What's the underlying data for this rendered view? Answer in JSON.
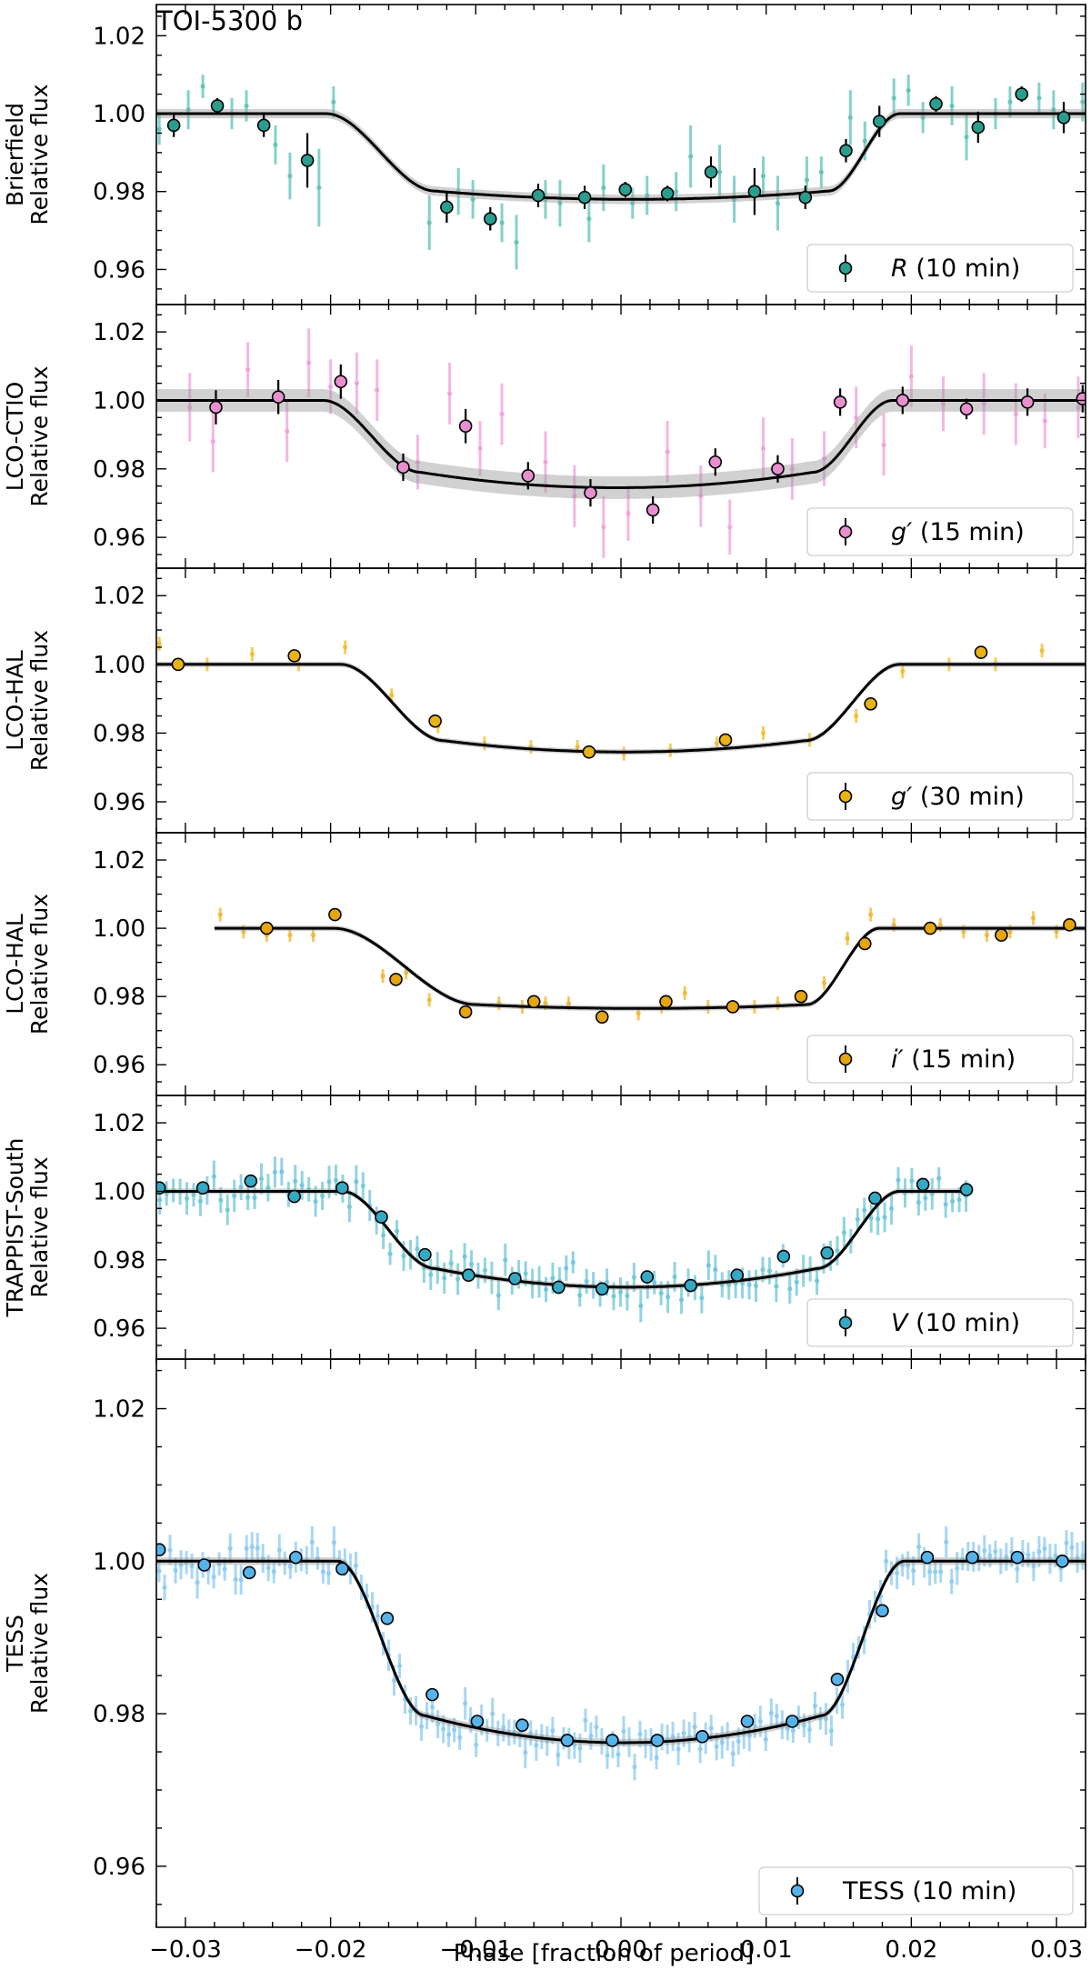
{
  "figure_title": "TOI-5300 b",
  "x_axis": {
    "label": "Phase [fraction of period]",
    "range": [
      -0.032,
      0.032
    ],
    "ticks": [
      -0.03,
      -0.02,
      -0.01,
      0.0,
      0.01,
      0.02,
      0.03
    ],
    "tick_labels": [
      "−0.03",
      "−0.02",
      "−0.01",
      "0.00",
      "0.01",
      "0.02",
      "0.03"
    ]
  },
  "chart_data": [
    {
      "type": "scatter",
      "panel_id": "brierfield",
      "ylabel_line1": "Brierfield",
      "ylabel_line2": "Relative flux",
      "legend_label": "R (10 min)",
      "legend_italic": "R",
      "legend_rest": " (10 min)",
      "color": "#2a9d8f",
      "raw_color": "#5cc2b5",
      "ylim": [
        0.951,
        1.028
      ],
      "yticks": [
        0.96,
        0.98,
        1.0,
        1.02
      ],
      "ytick_labels": [
        "0.96",
        "0.98",
        "1.00",
        "1.02"
      ],
      "model": {
        "x_start": -0.032,
        "x_end": 0.032,
        "depth": 0.022,
        "ingress_start": -0.0203,
        "ingress_end": -0.0128,
        "egress_start": 0.0143,
        "egress_end": 0.0192,
        "limb_darkening": 0.18
      },
      "model_band": 0.0012,
      "binned": {
        "x": [
          -0.0308,
          -0.0278,
          -0.0246,
          -0.0216,
          -0.012,
          -0.009,
          -0.0057,
          -0.0025,
          0.0003,
          0.0032,
          0.0062,
          0.0092,
          0.0127,
          0.0155,
          0.0178,
          0.0217,
          0.0246,
          0.0276,
          0.0305
        ],
        "y": [
          0.997,
          1.002,
          0.997,
          0.988,
          0.976,
          0.973,
          0.979,
          0.9785,
          0.9805,
          0.9795,
          0.985,
          0.98,
          0.9785,
          0.9905,
          0.998,
          1.0025,
          0.9965,
          1.005,
          0.999
        ],
        "err": [
          0.003,
          0.002,
          0.003,
          0.007,
          0.004,
          0.003,
          0.003,
          0.003,
          0.002,
          0.002,
          0.004,
          0.006,
          0.003,
          0.003,
          0.004,
          0.002,
          0.004,
          0.002,
          0.004
        ]
      },
      "raw": {
        "x": [
          -0.0318,
          -0.0298,
          -0.0288,
          -0.0268,
          -0.0258,
          -0.0238,
          -0.0228,
          -0.0208,
          -0.0198,
          -0.0132,
          -0.0112,
          -0.0102,
          -0.0082,
          -0.0072,
          -0.0052,
          -0.0042,
          -0.0022,
          -0.0012,
          0.0008,
          0.0018,
          0.0038,
          0.0048,
          0.0068,
          0.0078,
          0.0098,
          0.0108,
          0.0128,
          0.0138,
          0.0158,
          0.0168,
          0.0188,
          0.0198,
          0.0208,
          0.0228,
          0.0238,
          0.0258,
          0.0268,
          0.0288,
          0.0298,
          0.0318
        ],
        "y": [
          0.996,
          1.001,
          1.007,
          1.0,
          1.002,
          0.992,
          0.984,
          0.981,
          1.003,
          0.972,
          0.98,
          0.978,
          0.972,
          0.967,
          0.978,
          0.977,
          0.973,
          0.981,
          0.977,
          0.979,
          0.98,
          0.989,
          0.985,
          0.978,
          0.984,
          0.977,
          0.983,
          0.985,
          0.999,
          0.993,
          1.004,
          1.006,
          0.999,
          1.002,
          0.994,
          1.0,
          1.003,
          1.004,
          1.001,
          1.003
        ],
        "err": [
          0.004,
          0.005,
          0.003,
          0.004,
          0.004,
          0.005,
          0.006,
          0.01,
          0.004,
          0.007,
          0.006,
          0.005,
          0.005,
          0.007,
          0.005,
          0.006,
          0.006,
          0.006,
          0.004,
          0.005,
          0.005,
          0.008,
          0.007,
          0.006,
          0.005,
          0.007,
          0.006,
          0.004,
          0.007,
          0.005,
          0.005,
          0.004,
          0.004,
          0.005,
          0.006,
          0.004,
          0.004,
          0.004,
          0.005,
          0.005
        ]
      }
    },
    {
      "type": "scatter",
      "panel_id": "lco-ctio",
      "ylabel_line1": "LCO-CTIO",
      "ylabel_line2": "Relative flux",
      "legend_label": "g′ (15 min)",
      "legend_italic": "g′",
      "legend_rest": " (15 min)",
      "color": "#e88fd0",
      "raw_color": "#ef9fda",
      "ylim": [
        0.951,
        1.028
      ],
      "yticks": [
        0.96,
        0.98,
        1.0,
        1.02
      ],
      "ytick_labels": [
        "0.96",
        "0.98",
        "1.00",
        "1.02"
      ],
      "model": {
        "x_start": -0.032,
        "x_end": 0.032,
        "depth": 0.0255,
        "ingress_start": -0.0205,
        "ingress_end": -0.0138,
        "egress_start": 0.0132,
        "egress_end": 0.0187,
        "limb_darkening": 0.35
      },
      "model_band": 0.0033,
      "binned": {
        "x": [
          -0.0279,
          -0.0236,
          -0.0193,
          -0.015,
          -0.0107,
          -0.0064,
          -0.0021,
          0.0022,
          0.0065,
          0.0108,
          0.0151,
          0.0194,
          0.0238,
          0.028,
          0.0318
        ],
        "y": [
          0.998,
          1.001,
          1.0055,
          0.9805,
          0.9925,
          0.978,
          0.973,
          0.968,
          0.982,
          0.98,
          0.9995,
          1.0,
          0.9975,
          0.9995,
          1.0005
        ],
        "err": [
          0.005,
          0.005,
          0.005,
          0.004,
          0.005,
          0.004,
          0.004,
          0.004,
          0.004,
          0.004,
          0.004,
          0.004,
          0.003,
          0.004,
          0.004
        ]
      },
      "raw": {
        "x": [
          -0.0297,
          -0.0281,
          -0.0257,
          -0.023,
          -0.0215,
          -0.02,
          -0.0182,
          -0.0168,
          -0.014,
          -0.0118,
          -0.0097,
          -0.0082,
          -0.0052,
          -0.0032,
          -0.0012,
          0.0005,
          0.0032,
          0.0055,
          0.0075,
          0.0098,
          0.0118,
          0.014,
          0.0162,
          0.0181,
          0.02,
          0.0222,
          0.025,
          0.0272,
          0.0292,
          0.0315
        ],
        "y": [
          0.998,
          0.988,
          1.009,
          0.991,
          1.011,
          1.004,
          1.005,
          1.003,
          0.982,
          1.002,
          0.986,
          0.996,
          0.982,
          0.972,
          0.963,
          0.967,
          0.985,
          0.972,
          0.963,
          0.986,
          0.98,
          0.983,
          0.995,
          0.987,
          1.007,
          0.999,
          0.999,
          0.996,
          0.994,
          0.998
        ],
        "err": [
          0.01,
          0.009,
          0.008,
          0.009,
          0.01,
          0.008,
          0.009,
          0.009,
          0.008,
          0.009,
          0.008,
          0.009,
          0.009,
          0.009,
          0.009,
          0.008,
          0.009,
          0.009,
          0.008,
          0.009,
          0.009,
          0.008,
          0.009,
          0.009,
          0.009,
          0.008,
          0.009,
          0.009,
          0.008,
          0.009
        ]
      }
    },
    {
      "type": "scatter",
      "panel_id": "lco-hal-g",
      "ylabel_line1": "LCO-HAL",
      "ylabel_line2": "Relative flux",
      "legend_label": "g′ (30 min)",
      "legend_italic": "g′",
      "legend_rest": " (30 min)",
      "color": "#e8b315",
      "raw_color": "#f0bb2a",
      "ylim": [
        0.951,
        1.028
      ],
      "yticks": [
        0.96,
        0.98,
        1.0,
        1.02
      ],
      "ytick_labels": [
        "0.96",
        "0.98",
        "1.00",
        "1.02"
      ],
      "model": {
        "x_start": -0.032,
        "x_end": 0.032,
        "depth": 0.0255,
        "ingress_start": -0.0193,
        "ingress_end": -0.0122,
        "egress_start": 0.0127,
        "egress_end": 0.0192,
        "limb_darkening": 0.3
      },
      "model_band": 0.0008,
      "binned": {
        "x": [
          -0.0305,
          -0.0225,
          -0.0128,
          -0.0022,
          0.0072,
          0.0172,
          0.0248
        ],
        "y": [
          1.0,
          1.0025,
          0.9835,
          0.9745,
          0.978,
          0.9885,
          1.0035
        ],
        "err": [
          0.0015,
          0.0015,
          0.0015,
          0.0015,
          0.0015,
          0.0015,
          0.0015
        ]
      },
      "raw": {
        "x": [
          -0.0318,
          -0.0285,
          -0.0254,
          -0.0222,
          -0.019,
          -0.0158,
          -0.0126,
          -0.0094,
          -0.0062,
          -0.003,
          0.0002,
          0.0034,
          0.0066,
          0.0098,
          0.013,
          0.0162,
          0.0194,
          0.0226,
          0.0258,
          0.029
        ],
        "y": [
          1.006,
          1.0,
          1.003,
          1.0,
          1.005,
          0.991,
          0.982,
          0.977,
          0.976,
          0.976,
          0.974,
          0.975,
          0.977,
          0.98,
          0.978,
          0.985,
          0.998,
          1.0,
          1.0,
          1.004
        ],
        "err": [
          0.002,
          0.002,
          0.002,
          0.002,
          0.002,
          0.002,
          0.002,
          0.002,
          0.002,
          0.002,
          0.002,
          0.002,
          0.002,
          0.002,
          0.002,
          0.002,
          0.002,
          0.002,
          0.002,
          0.002
        ]
      }
    },
    {
      "type": "scatter",
      "panel_id": "lco-hal-i",
      "ylabel_line1": "LCO-HAL",
      "ylabel_line2": "Relative flux",
      "legend_label": "i′ (15 min)",
      "legend_italic": "i′",
      "legend_rest": " (15 min)",
      "color": "#e5a50d",
      "raw_color": "#efb532",
      "ylim": [
        0.951,
        1.028
      ],
      "yticks": [
        0.96,
        0.98,
        1.0,
        1.02
      ],
      "ytick_labels": [
        "0.96",
        "0.98",
        "1.00",
        "1.02"
      ],
      "model": {
        "x_start": -0.028,
        "x_end": 0.032,
        "depth": 0.0235,
        "ingress_start": -0.0198,
        "ingress_end": -0.01,
        "egress_start": 0.0128,
        "egress_end": 0.0178,
        "limb_darkening": 0.1
      },
      "model_band": 0.0008,
      "binned": {
        "x": [
          -0.0244,
          -0.0197,
          -0.0155,
          -0.0107,
          -0.006,
          -0.0013,
          0.0031,
          0.0077,
          0.0124,
          0.0168,
          0.0213,
          0.0262,
          0.0309
        ],
        "y": [
          1.0,
          1.004,
          0.985,
          0.9755,
          0.9785,
          0.974,
          0.9785,
          0.977,
          0.98,
          0.9955,
          1.0,
          0.998,
          1.001
        ],
        "err": [
          0.0015,
          0.0015,
          0.0015,
          0.0015,
          0.0015,
          0.0015,
          0.0015,
          0.0015,
          0.0015,
          0.0015,
          0.0015,
          0.0015,
          0.0015
        ]
      },
      "raw": {
        "x": [
          -0.0276,
          -0.026,
          -0.0244,
          -0.0228,
          -0.0212,
          -0.0164,
          -0.0148,
          -0.0132,
          -0.0084,
          -0.0068,
          -0.0052,
          -0.0036,
          0.0012,
          0.0028,
          0.0044,
          0.006,
          0.0092,
          0.0108,
          0.014,
          0.0156,
          0.0172,
          0.0188,
          0.022,
          0.0236,
          0.0252,
          0.0268,
          0.0284,
          0.03
        ],
        "y": [
          1.004,
          0.999,
          0.998,
          0.998,
          0.998,
          0.986,
          0.987,
          0.979,
          0.978,
          0.977,
          0.978,
          0.978,
          0.975,
          0.977,
          0.981,
          0.977,
          0.977,
          0.978,
          0.984,
          0.997,
          1.004,
          1.001,
          1.001,
          0.999,
          0.998,
          0.999,
          1.003,
          0.999
        ],
        "err": [
          0.002,
          0.002,
          0.002,
          0.002,
          0.002,
          0.002,
          0.002,
          0.002,
          0.002,
          0.002,
          0.002,
          0.002,
          0.002,
          0.002,
          0.002,
          0.002,
          0.002,
          0.002,
          0.002,
          0.002,
          0.002,
          0.002,
          0.002,
          0.002,
          0.002,
          0.002,
          0.002,
          0.002
        ]
      }
    },
    {
      "type": "scatter",
      "panel_id": "trappist-south",
      "ylabel_line1": "TRAPPIST-South",
      "ylabel_line2": "Relative flux",
      "legend_label": "V (10 min)",
      "legend_italic": "V",
      "legend_rest": " (10 min)",
      "color": "#35a9c4",
      "raw_color": "#6cc4d8",
      "ylim": [
        0.951,
        1.028
      ],
      "yticks": [
        0.96,
        0.98,
        1.0,
        1.02
      ],
      "ytick_labels": [
        "0.96",
        "0.98",
        "1.00",
        "1.02"
      ],
      "model": {
        "x_start": -0.032,
        "x_end": 0.024,
        "depth": 0.028,
        "ingress_start": -0.0192,
        "ingress_end": -0.0128,
        "egress_start": 0.0135,
        "egress_end": 0.0192,
        "limb_darkening": 0.4
      },
      "model_band": 0.0008,
      "binned": {
        "x": [
          -0.0318,
          -0.0288,
          -0.0255,
          -0.0225,
          -0.0192,
          -0.0165,
          -0.0135,
          -0.0105,
          -0.0073,
          -0.0043,
          -0.0013,
          0.0018,
          0.0048,
          0.008,
          0.0112,
          0.0142,
          0.0175,
          0.0208,
          0.0238
        ],
        "y": [
          1.001,
          1.001,
          1.003,
          0.9985,
          1.001,
          0.9925,
          0.9815,
          0.9755,
          0.9745,
          0.972,
          0.9715,
          0.975,
          0.9725,
          0.9755,
          0.981,
          0.982,
          0.998,
          1.002,
          1.0005
        ],
        "err": [
          0.0015,
          0.0015,
          0.0015,
          0.0015,
          0.0015,
          0.0015,
          0.0015,
          0.0015,
          0.0015,
          0.0015,
          0.0015,
          0.0015,
          0.0015,
          0.0015,
          0.0015,
          0.0015,
          0.0015,
          0.0015,
          0.0015
        ]
      },
      "raw_scatter": 0.004,
      "raw_count": 120,
      "raw_err": 0.004,
      "raw_seed": 7
    },
    {
      "type": "scatter",
      "panel_id": "tess",
      "ylabel_line1": "TESS",
      "ylabel_line2": "Relative flux",
      "legend_label": "TESS (10 min)",
      "legend_italic": "",
      "legend_rest": "TESS (10 min)",
      "color": "#55b3ea",
      "raw_color": "#8ccaf0",
      "ylim": [
        0.952,
        1.0265
      ],
      "yticks": [
        0.96,
        0.98,
        1.0,
        1.02
      ],
      "ytick_labels": [
        "0.96",
        "0.98",
        "1.00",
        "1.02"
      ],
      "model": {
        "x_start": -0.032,
        "x_end": 0.032,
        "depth": 0.0238,
        "ingress_start": -0.0195,
        "ingress_end": -0.0135,
        "egress_start": 0.0138,
        "egress_end": 0.0195,
        "limb_darkening": 0.3
      },
      "model_band": 0.0005,
      "binned": {
        "x": [
          -0.0318,
          -0.0287,
          -0.0256,
          -0.0224,
          -0.0192,
          -0.0161,
          -0.013,
          -0.0099,
          -0.0068,
          -0.0037,
          -0.0006,
          0.0025,
          0.0056,
          0.0087,
          0.0118,
          0.0149,
          0.018,
          0.0211,
          0.0242,
          0.0273,
          0.0304
        ],
        "y": [
          1.0015,
          0.9995,
          0.9985,
          1.0005,
          0.999,
          0.9925,
          0.9825,
          0.979,
          0.9785,
          0.9765,
          0.9765,
          0.9765,
          0.977,
          0.979,
          0.979,
          0.9845,
          0.9935,
          1.0005,
          1.0005,
          1.0005,
          1.0
        ],
        "err": [
          0.0008,
          0.0008,
          0.0008,
          0.0008,
          0.0008,
          0.0008,
          0.0008,
          0.0008,
          0.0008,
          0.0008,
          0.0008,
          0.0008,
          0.0008,
          0.0008,
          0.0008,
          0.0008,
          0.0008,
          0.0008,
          0.0008,
          0.0008,
          0.0008
        ]
      },
      "raw_scatter": 0.0018,
      "raw_count": 170,
      "raw_err": 0.0018,
      "raw_seed": 13
    }
  ]
}
